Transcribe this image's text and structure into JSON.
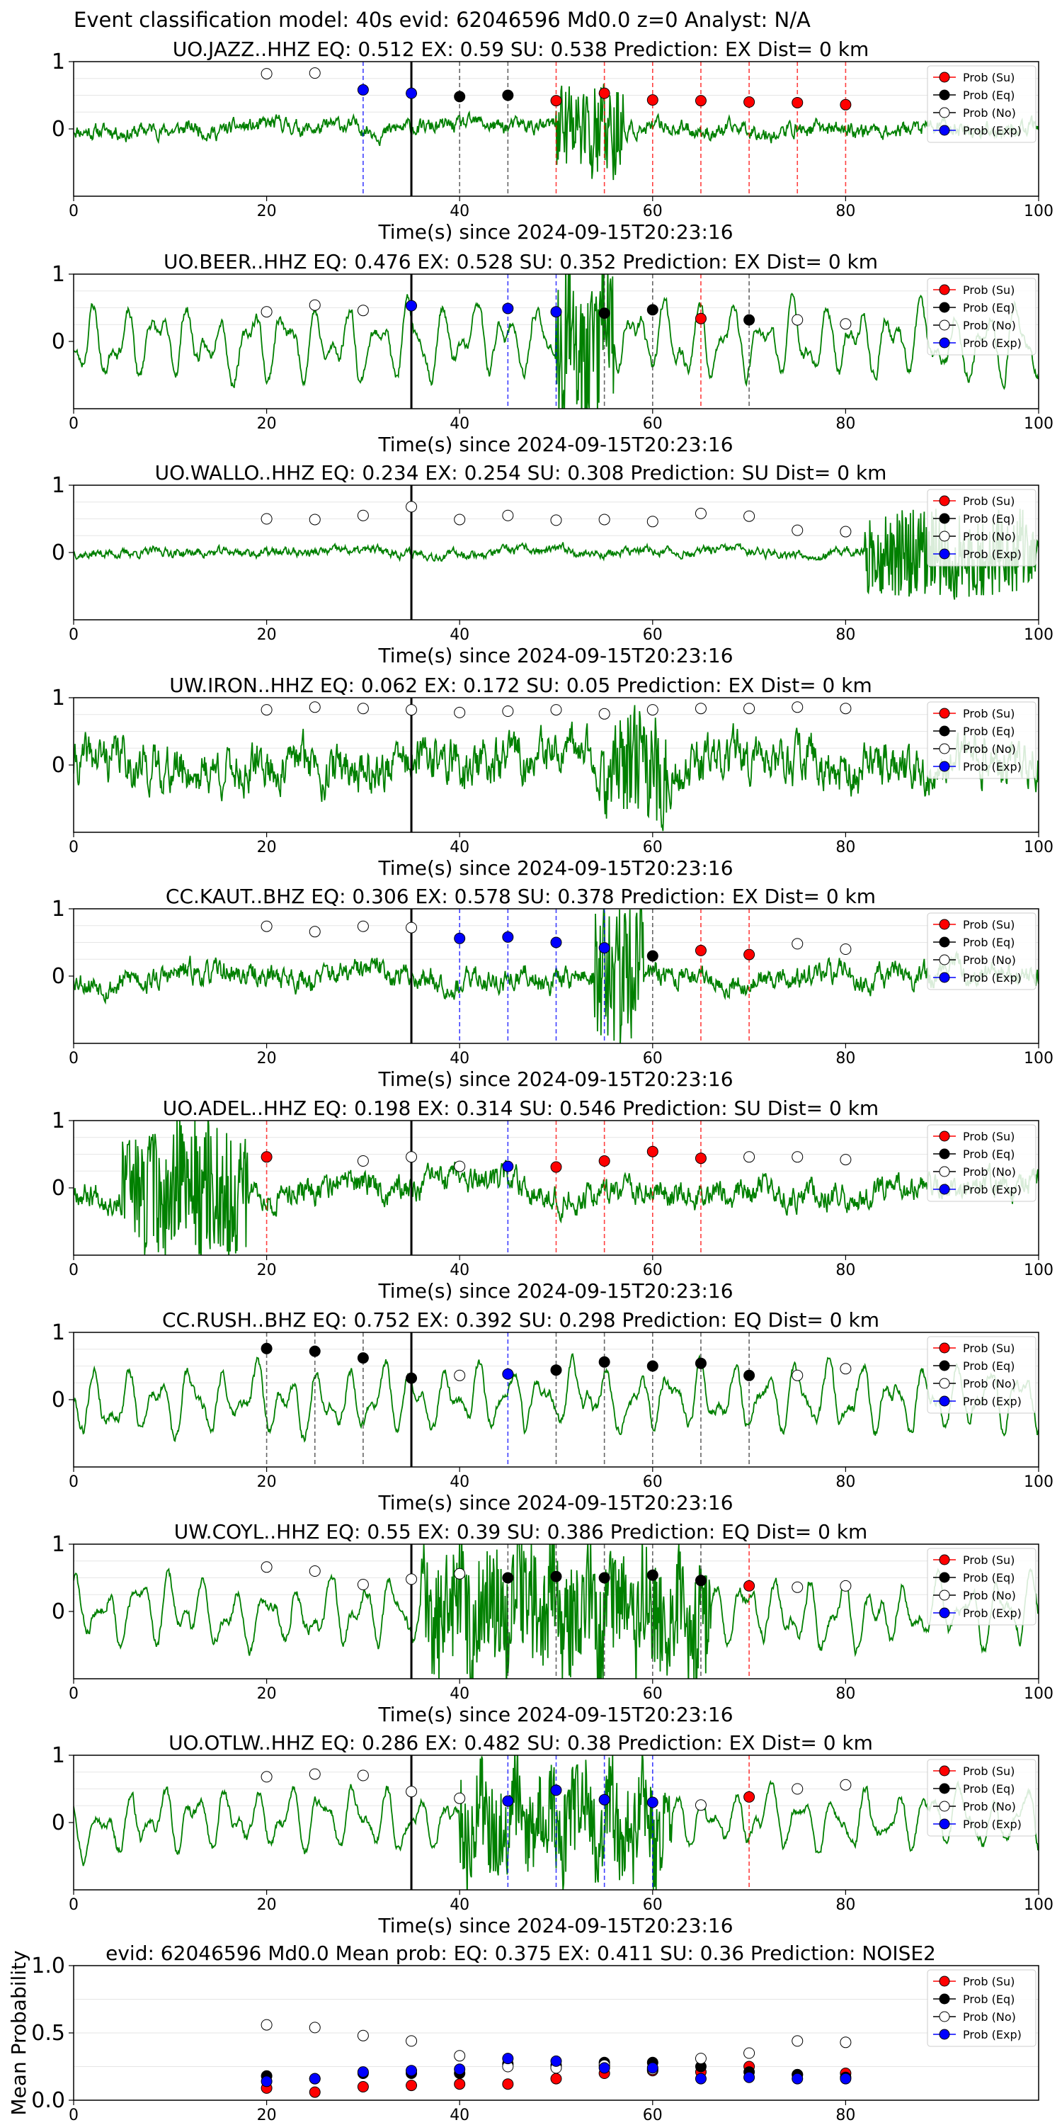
{
  "figure": {
    "suptitle": "Event classification model: 40s evid: 62046596 Md0.0 z=0 Analyst: N/A"
  },
  "colors": {
    "waveform": "#008000",
    "su": "#ff0000",
    "eq": "#000000",
    "no": "#ffffff",
    "exp": "#0000ff",
    "pick_line": "#000000"
  },
  "icons": {
    "legend_su": "red-circle-marker",
    "legend_eq": "black-circle-marker",
    "legend_no": "white-circle-marker",
    "legend_exp": "blue-circle-marker"
  },
  "chart_data": [
    {
      "type": "scatter",
      "title": "UO.JAZZ..HHZ   EQ: 0.512  EX: 0.59  SU: 0.538   Prediction: EX    Dist= 0 km",
      "xlabel": "Time(s) since 2024-09-15T20:23:16",
      "xlim": [
        0,
        100
      ],
      "ylim": [
        -1,
        1
      ],
      "xticks": [
        "0",
        "20",
        "40",
        "60",
        "80",
        "100"
      ],
      "yticks": [
        "1",
        "0"
      ],
      "pick_time": 35,
      "legend": [
        "Prob (Su)",
        "Prob (Eq)",
        "Prob (No)",
        "Prob (Exp)"
      ],
      "legend_loc": "upper right",
      "waveform": {
        "amp": 0.12,
        "character": "noise",
        "burst_start": 50,
        "burst_end": 57,
        "burst_amp": 0.55,
        "seed": 11
      },
      "points": [
        {
          "x": 20,
          "y": 0.82,
          "cls": "no"
        },
        {
          "x": 25,
          "y": 0.83,
          "cls": "no"
        },
        {
          "x": 30,
          "y": 0.58,
          "cls": "exp"
        },
        {
          "x": 35,
          "y": 0.53,
          "cls": "exp"
        },
        {
          "x": 40,
          "y": 0.48,
          "cls": "eq"
        },
        {
          "x": 45,
          "y": 0.5,
          "cls": "eq"
        },
        {
          "x": 50,
          "y": 0.42,
          "cls": "su"
        },
        {
          "x": 55,
          "y": 0.53,
          "cls": "su"
        },
        {
          "x": 60,
          "y": 0.43,
          "cls": "su"
        },
        {
          "x": 65,
          "y": 0.42,
          "cls": "su"
        },
        {
          "x": 70,
          "y": 0.4,
          "cls": "su"
        },
        {
          "x": 75,
          "y": 0.39,
          "cls": "su"
        },
        {
          "x": 80,
          "y": 0.36,
          "cls": "su"
        }
      ]
    },
    {
      "type": "scatter",
      "title": "UO.BEER..HHZ   EQ: 0.476  EX: 0.528  SU: 0.352   Prediction: EX    Dist= 0 km",
      "xlabel": "Time(s) since 2024-09-15T20:23:16",
      "xlim": [
        0,
        100
      ],
      "ylim": [
        -1,
        1
      ],
      "xticks": [
        "0",
        "20",
        "40",
        "60",
        "80",
        "100"
      ],
      "yticks": [
        "1",
        "0"
      ],
      "pick_time": 35,
      "legend": [
        "Prob (Su)",
        "Prob (Eq)",
        "Prob (No)",
        "Prob (Exp)"
      ],
      "legend_loc": "upper right",
      "waveform": {
        "amp": 0.5,
        "character": "oscillatory",
        "burst_start": 50,
        "burst_end": 56,
        "burst_amp": 0.8,
        "seed": 23
      },
      "points": [
        {
          "x": 20,
          "y": 0.44,
          "cls": "no"
        },
        {
          "x": 25,
          "y": 0.54,
          "cls": "no"
        },
        {
          "x": 30,
          "y": 0.46,
          "cls": "no"
        },
        {
          "x": 35,
          "y": 0.53,
          "cls": "exp"
        },
        {
          "x": 45,
          "y": 0.49,
          "cls": "exp"
        },
        {
          "x": 50,
          "y": 0.44,
          "cls": "exp"
        },
        {
          "x": 55,
          "y": 0.42,
          "cls": "eq"
        },
        {
          "x": 60,
          "y": 0.47,
          "cls": "eq"
        },
        {
          "x": 65,
          "y": 0.34,
          "cls": "su"
        },
        {
          "x": 70,
          "y": 0.32,
          "cls": "eq"
        },
        {
          "x": 75,
          "y": 0.32,
          "cls": "no"
        },
        {
          "x": 80,
          "y": 0.26,
          "cls": "no"
        }
      ]
    },
    {
      "type": "scatter",
      "title": "UO.WALLO..HHZ   EQ: 0.234  EX: 0.254  SU: 0.308   Prediction: SU    Dist= 0 km",
      "xlabel": "Time(s) since 2024-09-15T20:23:16",
      "xlim": [
        0,
        100
      ],
      "ylim": [
        -1,
        1
      ],
      "xticks": [
        "0",
        "20",
        "40",
        "60",
        "80",
        "100"
      ],
      "yticks": [
        "1",
        "0"
      ],
      "pick_time": 35,
      "legend": [
        "Prob (Su)",
        "Prob (Eq)",
        "Prob (No)",
        "Prob (Exp)"
      ],
      "legend_loc": "upper right",
      "waveform": {
        "amp": 0.07,
        "character": "noise",
        "burst_start": 82,
        "burst_end": 100,
        "burst_amp": 0.5,
        "seed": 37
      },
      "points": [
        {
          "x": 20,
          "y": 0.5,
          "cls": "no"
        },
        {
          "x": 25,
          "y": 0.49,
          "cls": "no"
        },
        {
          "x": 30,
          "y": 0.55,
          "cls": "no"
        },
        {
          "x": 35,
          "y": 0.68,
          "cls": "no"
        },
        {
          "x": 40,
          "y": 0.49,
          "cls": "no"
        },
        {
          "x": 45,
          "y": 0.55,
          "cls": "no"
        },
        {
          "x": 50,
          "y": 0.48,
          "cls": "no"
        },
        {
          "x": 55,
          "y": 0.49,
          "cls": "no"
        },
        {
          "x": 60,
          "y": 0.46,
          "cls": "no"
        },
        {
          "x": 65,
          "y": 0.58,
          "cls": "no"
        },
        {
          "x": 70,
          "y": 0.54,
          "cls": "no"
        },
        {
          "x": 75,
          "y": 0.33,
          "cls": "no"
        },
        {
          "x": 80,
          "y": 0.31,
          "cls": "no"
        }
      ]
    },
    {
      "type": "scatter",
      "title": "UW.IRON..HHZ   EQ: 0.062  EX: 0.172  SU: 0.05   Prediction: EX    Dist= 0 km",
      "xlabel": "Time(s) since 2024-09-15T20:23:16",
      "xlim": [
        0,
        100
      ],
      "ylim": [
        -1,
        1
      ],
      "xticks": [
        "0",
        "20",
        "40",
        "60",
        "80",
        "100"
      ],
      "yticks": [
        "1",
        "0"
      ],
      "pick_time": 35,
      "legend": [
        "Prob (Su)",
        "Prob (Eq)",
        "Prob (No)",
        "Prob (Exp)"
      ],
      "legend_loc": "upper right",
      "waveform": {
        "amp": 0.35,
        "character": "noise",
        "burst_start": 55,
        "burst_end": 62,
        "burst_amp": 0.55,
        "seed": 41
      },
      "points": [
        {
          "x": 20,
          "y": 0.82,
          "cls": "no"
        },
        {
          "x": 25,
          "y": 0.86,
          "cls": "no"
        },
        {
          "x": 30,
          "y": 0.84,
          "cls": "no"
        },
        {
          "x": 35,
          "y": 0.82,
          "cls": "no"
        },
        {
          "x": 40,
          "y": 0.78,
          "cls": "no"
        },
        {
          "x": 45,
          "y": 0.8,
          "cls": "no"
        },
        {
          "x": 50,
          "y": 0.82,
          "cls": "no"
        },
        {
          "x": 55,
          "y": 0.76,
          "cls": "no"
        },
        {
          "x": 60,
          "y": 0.82,
          "cls": "no"
        },
        {
          "x": 65,
          "y": 0.84,
          "cls": "no"
        },
        {
          "x": 70,
          "y": 0.84,
          "cls": "no"
        },
        {
          "x": 75,
          "y": 0.86,
          "cls": "no"
        },
        {
          "x": 80,
          "y": 0.84,
          "cls": "no"
        }
      ]
    },
    {
      "type": "scatter",
      "title": "CC.KAUT..BHZ   EQ: 0.306  EX: 0.578  SU: 0.378   Prediction: EX    Dist= 0 km",
      "xlabel": "Time(s) since 2024-09-15T20:23:16",
      "xlim": [
        0,
        100
      ],
      "ylim": [
        -1,
        1
      ],
      "xticks": [
        "0",
        "20",
        "40",
        "60",
        "80",
        "100"
      ],
      "yticks": [
        "1",
        "0"
      ],
      "pick_time": 35,
      "legend": [
        "Prob (Su)",
        "Prob (Eq)",
        "Prob (No)",
        "Prob (Exp)"
      ],
      "legend_loc": "upper right",
      "waveform": {
        "amp": 0.18,
        "character": "noise",
        "burst_start": 54,
        "burst_end": 59,
        "burst_amp": 0.85,
        "seed": 53
      },
      "points": [
        {
          "x": 20,
          "y": 0.74,
          "cls": "no"
        },
        {
          "x": 25,
          "y": 0.66,
          "cls": "no"
        },
        {
          "x": 30,
          "y": 0.74,
          "cls": "no"
        },
        {
          "x": 35,
          "y": 0.72,
          "cls": "no"
        },
        {
          "x": 40,
          "y": 0.56,
          "cls": "exp"
        },
        {
          "x": 45,
          "y": 0.58,
          "cls": "exp"
        },
        {
          "x": 50,
          "y": 0.5,
          "cls": "exp"
        },
        {
          "x": 55,
          "y": 0.42,
          "cls": "exp"
        },
        {
          "x": 60,
          "y": 0.3,
          "cls": "eq"
        },
        {
          "x": 65,
          "y": 0.38,
          "cls": "su"
        },
        {
          "x": 70,
          "y": 0.32,
          "cls": "su"
        },
        {
          "x": 75,
          "y": 0.48,
          "cls": "no"
        },
        {
          "x": 80,
          "y": 0.4,
          "cls": "no"
        }
      ]
    },
    {
      "type": "scatter",
      "title": "UO.ADEL..HHZ   EQ: 0.198  EX: 0.314  SU: 0.546   Prediction: SU    Dist= 0 km",
      "xlabel": "Time(s) since 2024-09-15T20:23:16",
      "xlim": [
        0,
        100
      ],
      "ylim": [
        -1,
        1
      ],
      "xticks": [
        "0",
        "20",
        "40",
        "60",
        "80",
        "100"
      ],
      "yticks": [
        "1",
        "0"
      ],
      "pick_time": 35,
      "legend": [
        "Prob (Su)",
        "Prob (Eq)",
        "Prob (No)",
        "Prob (Exp)"
      ],
      "legend_loc": "upper right",
      "waveform": {
        "amp": 0.2,
        "character": "noise",
        "burst_start": 5,
        "burst_end": 18,
        "burst_amp": 0.75,
        "seed": 67
      },
      "points": [
        {
          "x": 20,
          "y": 0.46,
          "cls": "su"
        },
        {
          "x": 30,
          "y": 0.4,
          "cls": "no"
        },
        {
          "x": 35,
          "y": 0.46,
          "cls": "no"
        },
        {
          "x": 40,
          "y": 0.32,
          "cls": "no"
        },
        {
          "x": 45,
          "y": 0.32,
          "cls": "exp"
        },
        {
          "x": 50,
          "y": 0.31,
          "cls": "su"
        },
        {
          "x": 55,
          "y": 0.4,
          "cls": "su"
        },
        {
          "x": 60,
          "y": 0.54,
          "cls": "su"
        },
        {
          "x": 65,
          "y": 0.44,
          "cls": "su"
        },
        {
          "x": 70,
          "y": 0.46,
          "cls": "no"
        },
        {
          "x": 75,
          "y": 0.46,
          "cls": "no"
        },
        {
          "x": 80,
          "y": 0.42,
          "cls": "no"
        }
      ]
    },
    {
      "type": "scatter",
      "title": "CC.RUSH..BHZ   EQ: 0.752  EX: 0.392  SU: 0.298   Prediction: EQ    Dist= 0 km",
      "xlabel": "Time(s) since 2024-09-15T20:23:16",
      "xlim": [
        0,
        100
      ],
      "ylim": [
        -1,
        1
      ],
      "xticks": [
        "0",
        "20",
        "40",
        "60",
        "80",
        "100"
      ],
      "yticks": [
        "1",
        "0"
      ],
      "pick_time": 35,
      "legend": [
        "Prob (Su)",
        "Prob (Eq)",
        "Prob (No)",
        "Prob (Exp)"
      ],
      "legend_loc": "upper right",
      "waveform": {
        "amp": 0.45,
        "character": "oscillatory",
        "burst_start": 0,
        "burst_end": 0,
        "burst_amp": 0,
        "seed": 79
      },
      "points": [
        {
          "x": 20,
          "y": 0.76,
          "cls": "eq"
        },
        {
          "x": 25,
          "y": 0.72,
          "cls": "eq"
        },
        {
          "x": 30,
          "y": 0.62,
          "cls": "eq"
        },
        {
          "x": 35,
          "y": 0.32,
          "cls": "eq"
        },
        {
          "x": 40,
          "y": 0.36,
          "cls": "no"
        },
        {
          "x": 45,
          "y": 0.38,
          "cls": "exp"
        },
        {
          "x": 50,
          "y": 0.44,
          "cls": "eq"
        },
        {
          "x": 55,
          "y": 0.56,
          "cls": "eq"
        },
        {
          "x": 60,
          "y": 0.5,
          "cls": "eq"
        },
        {
          "x": 65,
          "y": 0.54,
          "cls": "eq"
        },
        {
          "x": 70,
          "y": 0.36,
          "cls": "eq"
        },
        {
          "x": 75,
          "y": 0.36,
          "cls": "no"
        },
        {
          "x": 80,
          "y": 0.46,
          "cls": "no"
        }
      ]
    },
    {
      "type": "scatter",
      "title": "UW.COYL..HHZ   EQ: 0.55  EX: 0.39  SU: 0.386   Prediction: EQ    Dist= 0 km",
      "xlabel": "Time(s) since 2024-09-15T20:23:16",
      "xlim": [
        0,
        100
      ],
      "ylim": [
        -1,
        1
      ],
      "xticks": [
        "0",
        "20",
        "40",
        "60",
        "80",
        "100"
      ],
      "yticks": [
        "1",
        "0"
      ],
      "pick_time": 35,
      "legend": [
        "Prob (Su)",
        "Prob (Eq)",
        "Prob (No)",
        "Prob (Exp)"
      ],
      "legend_loc": "upper right",
      "waveform": {
        "amp": 0.45,
        "character": "oscillatory",
        "burst_start": 36,
        "burst_end": 66,
        "burst_amp": 0.65,
        "seed": 83
      },
      "points": [
        {
          "x": 20,
          "y": 0.66,
          "cls": "no"
        },
        {
          "x": 25,
          "y": 0.6,
          "cls": "no"
        },
        {
          "x": 30,
          "y": 0.4,
          "cls": "no"
        },
        {
          "x": 35,
          "y": 0.48,
          "cls": "no"
        },
        {
          "x": 40,
          "y": 0.56,
          "cls": "no"
        },
        {
          "x": 45,
          "y": 0.5,
          "cls": "eq"
        },
        {
          "x": 50,
          "y": 0.52,
          "cls": "eq"
        },
        {
          "x": 55,
          "y": 0.5,
          "cls": "eq"
        },
        {
          "x": 60,
          "y": 0.54,
          "cls": "eq"
        },
        {
          "x": 65,
          "y": 0.46,
          "cls": "eq"
        },
        {
          "x": 70,
          "y": 0.38,
          "cls": "su"
        },
        {
          "x": 75,
          "y": 0.36,
          "cls": "no"
        },
        {
          "x": 80,
          "y": 0.38,
          "cls": "no"
        }
      ]
    },
    {
      "type": "scatter",
      "title": "UO.OTLW..HHZ   EQ: 0.286  EX: 0.482  SU: 0.38   Prediction: EX    Dist= 0 km",
      "xlabel": "Time(s) since 2024-09-15T20:23:16",
      "xlim": [
        0,
        100
      ],
      "ylim": [
        -1,
        1
      ],
      "xticks": [
        "0",
        "20",
        "40",
        "60",
        "80",
        "100"
      ],
      "yticks": [
        "1",
        "0"
      ],
      "pick_time": 35,
      "legend": [
        "Prob (Su)",
        "Prob (Eq)",
        "Prob (No)",
        "Prob (Exp)"
      ],
      "legend_loc": "upper right",
      "waveform": {
        "amp": 0.4,
        "character": "oscillatory",
        "burst_start": 40,
        "burst_end": 62,
        "burst_amp": 0.55,
        "seed": 97
      },
      "points": [
        {
          "x": 20,
          "y": 0.68,
          "cls": "no"
        },
        {
          "x": 25,
          "y": 0.72,
          "cls": "no"
        },
        {
          "x": 30,
          "y": 0.7,
          "cls": "no"
        },
        {
          "x": 35,
          "y": 0.46,
          "cls": "no"
        },
        {
          "x": 40,
          "y": 0.36,
          "cls": "no"
        },
        {
          "x": 45,
          "y": 0.32,
          "cls": "exp"
        },
        {
          "x": 50,
          "y": 0.48,
          "cls": "exp"
        },
        {
          "x": 55,
          "y": 0.34,
          "cls": "exp"
        },
        {
          "x": 60,
          "y": 0.3,
          "cls": "exp"
        },
        {
          "x": 65,
          "y": 0.26,
          "cls": "no"
        },
        {
          "x": 70,
          "y": 0.38,
          "cls": "su"
        },
        {
          "x": 75,
          "y": 0.5,
          "cls": "no"
        },
        {
          "x": 80,
          "y": 0.56,
          "cls": "no"
        }
      ]
    },
    {
      "type": "scatter",
      "title": "evid: 62046596  Md0.0   Mean prob:   EQ: 0.375  EX: 0.411  SU: 0.36   Prediction: NOISE2",
      "xlabel": "",
      "ylabel": "Mean Probability",
      "xlim": [
        0,
        100
      ],
      "ylim": [
        0,
        1
      ],
      "xticks": [
        "0",
        "20",
        "40",
        "60",
        "80"
      ],
      "yticks": [
        "1.0",
        "0.5",
        "0.0"
      ],
      "legend": [
        "Prob (Su)",
        "Prob (Eq)",
        "Prob (No)",
        "Prob (Exp)"
      ],
      "legend_loc": "upper right",
      "x": [
        20,
        25,
        30,
        35,
        40,
        45,
        50,
        55,
        60,
        65,
        70,
        75,
        80
      ],
      "series": [
        {
          "name": "Prob (Su)",
          "cls": "su",
          "values": [
            0.09,
            0.06,
            0.1,
            0.11,
            0.12,
            0.12,
            0.16,
            0.2,
            0.22,
            0.21,
            0.25,
            0.19,
            0.2
          ]
        },
        {
          "name": "Prob (Eq)",
          "cls": "eq",
          "values": [
            0.18,
            0.16,
            0.2,
            0.2,
            0.2,
            0.27,
            0.26,
            0.28,
            0.28,
            0.25,
            0.21,
            0.19,
            0.17
          ]
        },
        {
          "name": "Prob (No)",
          "cls": "no",
          "values": [
            0.56,
            0.54,
            0.48,
            0.44,
            0.33,
            0.25,
            0.24,
            0.26,
            0.23,
            0.31,
            0.35,
            0.44,
            0.43
          ]
        },
        {
          "name": "Prob (Exp)",
          "cls": "exp",
          "values": [
            0.14,
            0.16,
            0.21,
            0.22,
            0.23,
            0.31,
            0.29,
            0.24,
            0.24,
            0.16,
            0.17,
            0.16,
            0.16
          ]
        }
      ]
    }
  ]
}
